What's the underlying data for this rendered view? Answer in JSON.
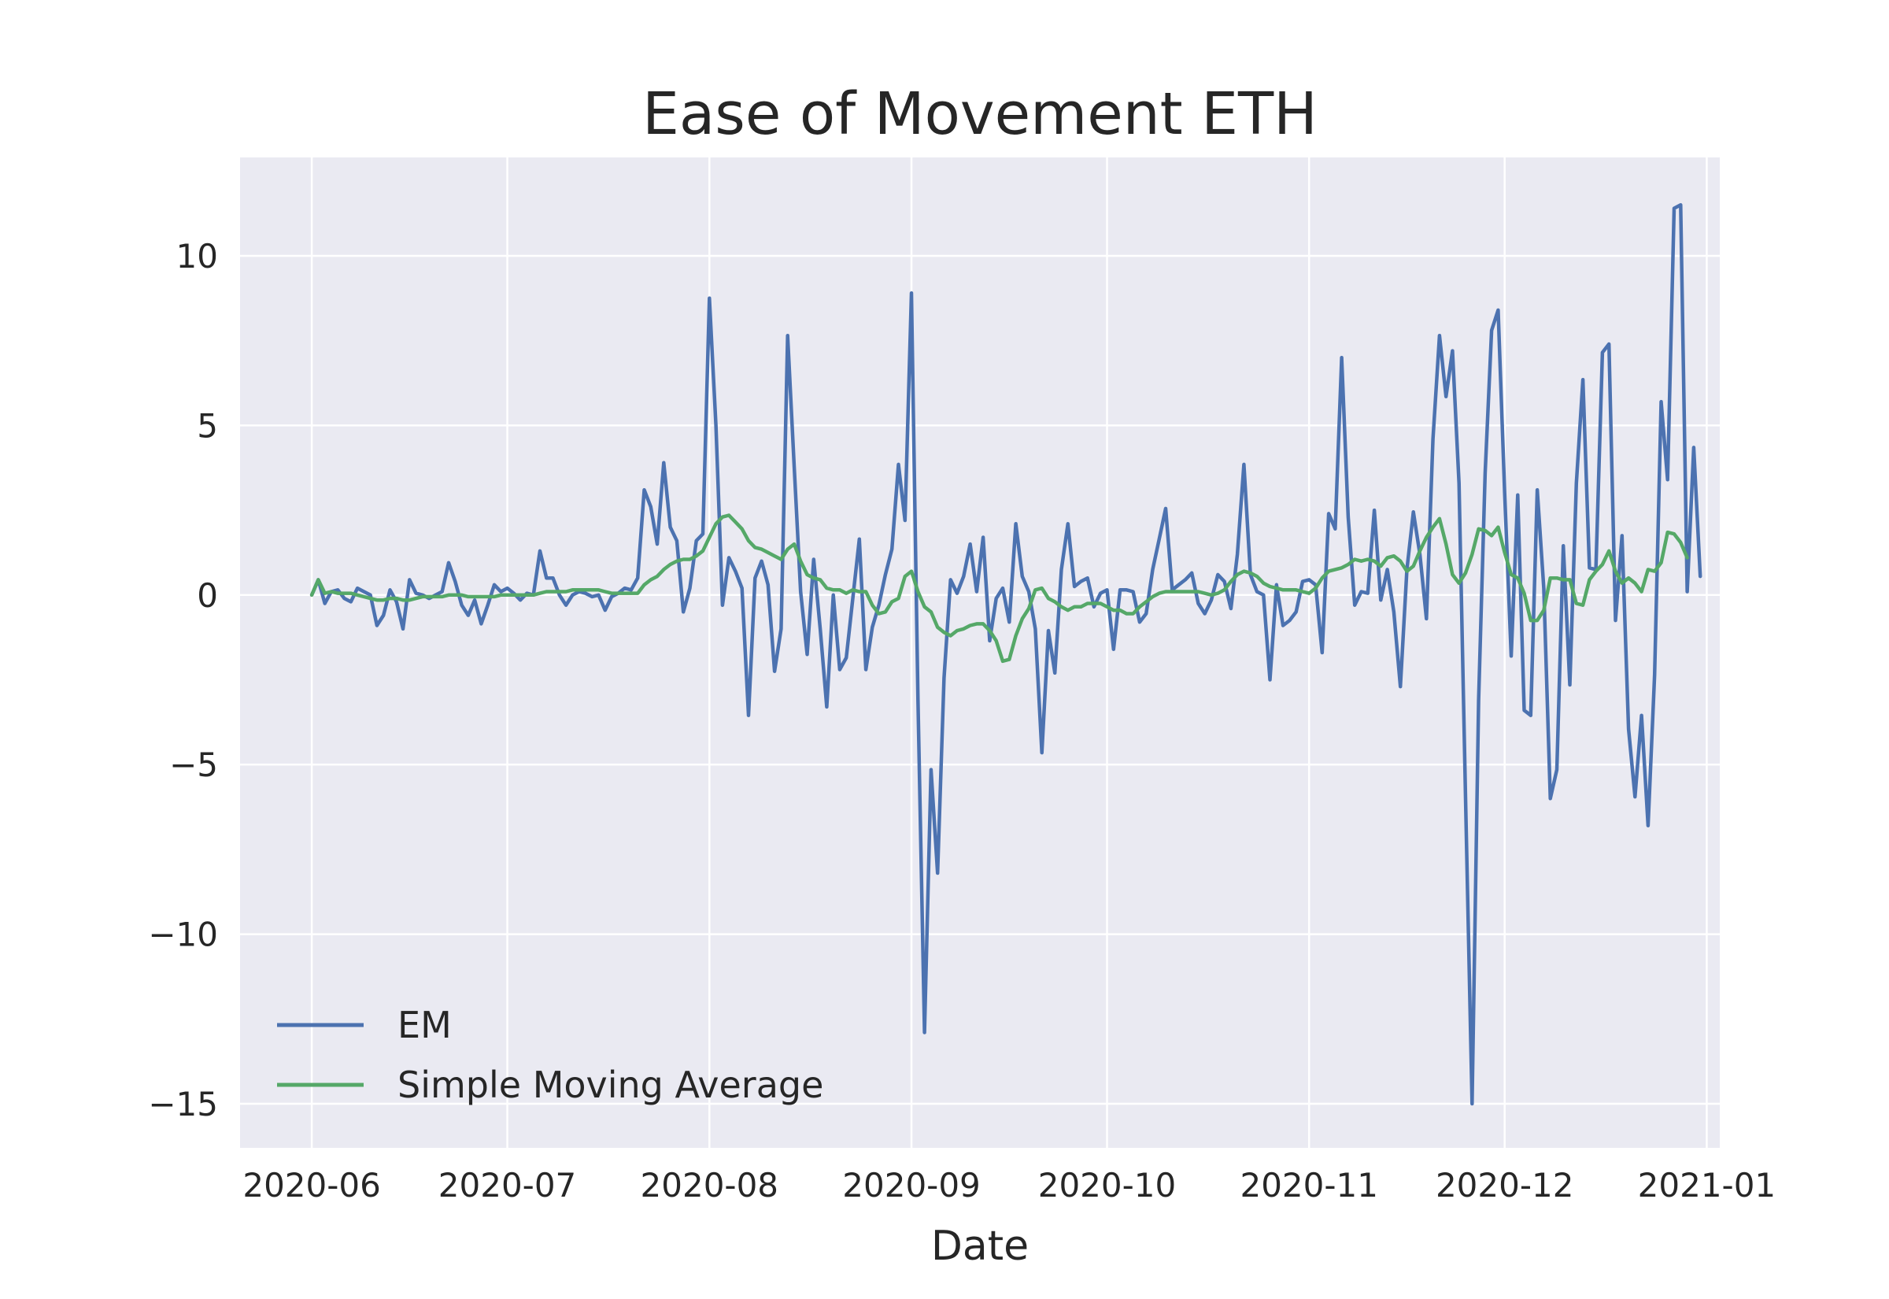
{
  "chart_data": {
    "type": "line",
    "title": "Ease of Movement ETH",
    "xlabel": "Date",
    "ylabel": "",
    "xlim": [
      "2020-05-21",
      "2021-01-03"
    ],
    "ylim": [
      -16.3,
      12.9
    ],
    "x_ticks": [
      "2020-06",
      "2020-07",
      "2020-08",
      "2020-09",
      "2020-10",
      "2020-11",
      "2020-12",
      "2021-01"
    ],
    "x_tick_dates": [
      "2020-06-01",
      "2020-07-01",
      "2020-08-01",
      "2020-09-01",
      "2020-10-01",
      "2020-11-01",
      "2020-12-01",
      "2021-01-01"
    ],
    "y_ticks": [
      10,
      5,
      0,
      -5,
      -10,
      -15
    ],
    "y_tick_labels": [
      "10",
      "5",
      "0",
      "−5",
      "−10",
      "−15"
    ],
    "grid": true,
    "legend_position": "lower-left",
    "start_date": "2020-06-01",
    "series": [
      {
        "name": "EM",
        "color": "#4c72b0",
        "values": [
          0.0,
          0.45,
          -0.25,
          0.1,
          0.15,
          -0.1,
          -0.2,
          0.2,
          0.1,
          0.0,
          -0.9,
          -0.6,
          0.15,
          -0.2,
          -1.0,
          0.45,
          0.05,
          0.0,
          -0.1,
          0.0,
          0.1,
          0.95,
          0.4,
          -0.3,
          -0.6,
          -0.15,
          -0.85,
          -0.3,
          0.3,
          0.1,
          0.2,
          0.05,
          -0.15,
          0.05,
          0.0,
          1.3,
          0.5,
          0.5,
          0.0,
          -0.3,
          0.0,
          0.1,
          0.05,
          -0.05,
          0.0,
          -0.45,
          -0.05,
          0.05,
          0.2,
          0.15,
          0.5,
          3.1,
          2.6,
          1.5,
          3.9,
          2.0,
          1.6,
          -0.5,
          0.2,
          1.6,
          1.8,
          8.75,
          5.0,
          -0.3,
          1.1,
          0.7,
          0.2,
          -3.55,
          0.5,
          1.0,
          0.3,
          -2.25,
          -1.0,
          7.65,
          3.8,
          0.1,
          -1.75,
          1.05,
          -1.0,
          -3.3,
          0.0,
          -2.2,
          -1.85,
          -0.1,
          1.65,
          -2.2,
          -0.95,
          -0.3,
          0.6,
          1.35,
          3.85,
          2.2,
          8.9,
          -3.1,
          -12.9,
          -5.15,
          -8.2,
          -2.45,
          0.45,
          0.05,
          0.55,
          1.5,
          0.1,
          1.7,
          -1.35,
          -0.1,
          0.2,
          -0.8,
          2.1,
          0.55,
          0.1,
          -1.0,
          -4.65,
          -1.05,
          -2.3,
          0.75,
          2.1,
          0.25,
          0.4,
          0.5,
          -0.35,
          0.05,
          0.15,
          -1.6,
          0.15,
          0.15,
          0.1,
          -0.8,
          -0.55,
          0.75,
          1.65,
          2.55,
          0.15,
          0.3,
          0.45,
          0.65,
          -0.25,
          -0.55,
          -0.15,
          0.6,
          0.4,
          -0.4,
          1.2,
          3.85,
          0.6,
          0.1,
          0.0,
          -2.5,
          0.3,
          -0.9,
          -0.75,
          -0.5,
          0.4,
          0.45,
          0.3,
          -1.7,
          2.4,
          1.95,
          7.0,
          2.3,
          -0.3,
          0.1,
          0.05,
          2.5,
          -0.15,
          0.75,
          -0.5,
          -2.7,
          0.75,
          2.45,
          1.2,
          -0.7,
          4.6,
          7.65,
          5.85,
          7.2,
          3.3,
          -6.0,
          -15.0,
          -3.1,
          3.6,
          7.8,
          8.4,
          3.0,
          -1.8,
          2.95,
          -3.4,
          -3.55,
          3.1,
          0.2,
          -6.0,
          -5.15,
          1.45,
          -2.65,
          3.3,
          6.35,
          0.8,
          0.75,
          7.15,
          7.4,
          -0.75,
          1.75,
          -3.95,
          -5.95,
          -3.55,
          -6.8,
          -2.35,
          5.7,
          3.4,
          11.4,
          11.5,
          0.1,
          4.35,
          0.55
        ]
      },
      {
        "name": "Simple Moving Average",
        "color": "#55a868",
        "values": [
          0.0,
          0.45,
          0.05,
          0.1,
          0.05,
          0.05,
          0.05,
          0.0,
          -0.05,
          -0.1,
          -0.15,
          -0.15,
          -0.1,
          -0.1,
          -0.15,
          -0.15,
          -0.1,
          -0.05,
          -0.05,
          -0.05,
          -0.05,
          0.0,
          0.0,
          0.0,
          -0.05,
          -0.05,
          -0.05,
          -0.05,
          -0.05,
          0.0,
          0.0,
          0.0,
          0.0,
          0.0,
          0.0,
          0.05,
          0.1,
          0.1,
          0.1,
          0.1,
          0.15,
          0.15,
          0.15,
          0.15,
          0.15,
          0.1,
          0.05,
          0.05,
          0.05,
          0.05,
          0.05,
          0.3,
          0.45,
          0.55,
          0.75,
          0.9,
          1.0,
          1.05,
          1.05,
          1.15,
          1.3,
          1.7,
          2.1,
          2.3,
          2.35,
          2.15,
          1.95,
          1.6,
          1.4,
          1.35,
          1.25,
          1.15,
          1.05,
          1.35,
          1.5,
          1.0,
          0.6,
          0.5,
          0.45,
          0.2,
          0.15,
          0.15,
          0.05,
          0.15,
          0.1,
          0.1,
          -0.3,
          -0.55,
          -0.5,
          -0.2,
          -0.1,
          0.55,
          0.7,
          0.1,
          -0.35,
          -0.5,
          -0.95,
          -1.1,
          -1.2,
          -1.05,
          -1.0,
          -0.9,
          -0.85,
          -0.85,
          -1.05,
          -1.35,
          -1.95,
          -1.9,
          -1.2,
          -0.7,
          -0.4,
          0.15,
          0.2,
          -0.1,
          -0.2,
          -0.35,
          -0.45,
          -0.35,
          -0.35,
          -0.25,
          -0.25,
          -0.25,
          -0.35,
          -0.45,
          -0.45,
          -0.55,
          -0.55,
          -0.35,
          -0.2,
          -0.05,
          0.05,
          0.1,
          0.1,
          0.1,
          0.1,
          0.1,
          0.1,
          0.05,
          0.0,
          0.05,
          0.15,
          0.4,
          0.6,
          0.7,
          0.65,
          0.55,
          0.35,
          0.25,
          0.2,
          0.15,
          0.15,
          0.15,
          0.1,
          0.05,
          0.2,
          0.5,
          0.7,
          0.75,
          0.8,
          0.9,
          1.05,
          1.0,
          1.05,
          1.0,
          0.85,
          1.1,
          1.15,
          1.0,
          0.7,
          0.85,
          1.3,
          1.7,
          2.0,
          2.25,
          1.5,
          0.6,
          0.35,
          0.65,
          1.2,
          1.95,
          1.9,
          1.75,
          2.0,
          1.25,
          0.6,
          0.5,
          0.05,
          -0.75,
          -0.75,
          -0.45,
          0.5,
          0.5,
          0.45,
          0.45,
          -0.25,
          -0.3,
          0.45,
          0.7,
          0.9,
          1.3,
          0.7,
          0.35,
          0.5,
          0.35,
          0.1,
          0.75,
          0.7,
          0.95,
          1.85,
          1.8,
          1.55,
          1.1
        ]
      }
    ]
  }
}
